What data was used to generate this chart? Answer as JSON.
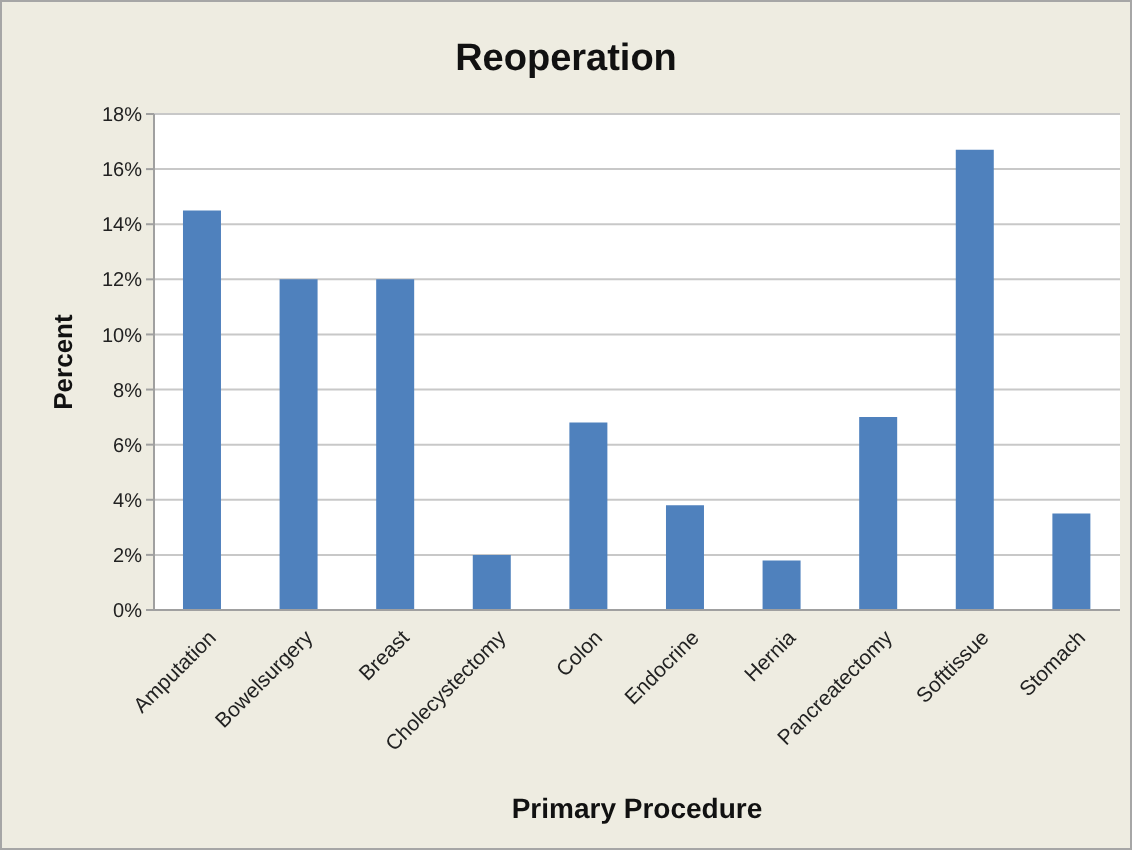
{
  "chart_data": {
    "type": "bar",
    "title": "Reoperation",
    "xlabel": "Primary Procedure",
    "ylabel": "Percent",
    "categories": [
      "Amputation",
      "Bowelsurgery",
      "Breast",
      "Cholecystectomy",
      "Colon",
      "Endocrine",
      "Hernia",
      "Pancreatectomy",
      "Softtissue",
      "Stomach"
    ],
    "values": [
      14.5,
      12.0,
      12.0,
      2.0,
      6.8,
      3.8,
      1.8,
      7.0,
      16.7,
      3.5
    ],
    "color": "#4f81bd",
    "ylim": [
      0,
      18
    ],
    "yticks": [
      {
        "value": 0,
        "label": "0%"
      },
      {
        "value": 2,
        "label": "2%"
      },
      {
        "value": 4,
        "label": "4%"
      },
      {
        "value": 6,
        "label": "6%"
      },
      {
        "value": 8,
        "label": "8%"
      },
      {
        "value": 10,
        "label": "10%"
      },
      {
        "value": 12,
        "label": "12%"
      },
      {
        "value": 14,
        "label": "14%"
      },
      {
        "value": 16,
        "label": "16%"
      },
      {
        "value": 18,
        "label": "18%"
      }
    ],
    "grid": "y"
  }
}
